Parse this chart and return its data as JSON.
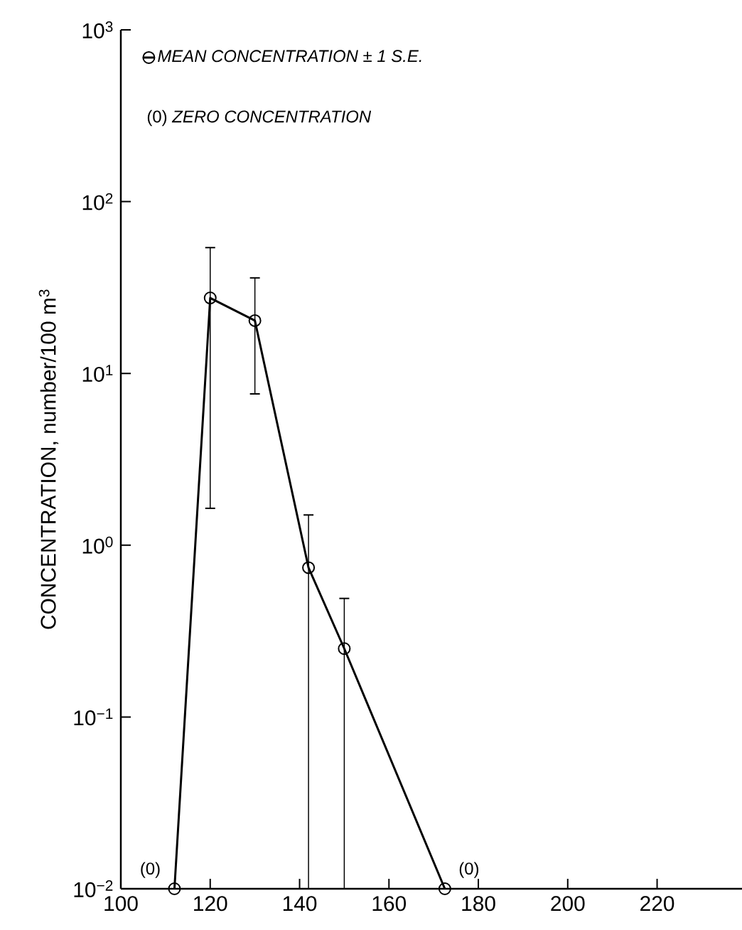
{
  "chart_data": {
    "type": "line",
    "ylabel": "CONCENTRATION, number/100 m$^{3}$",
    "x": [
      112,
      120,
      130,
      142,
      150,
      172.5
    ],
    "series": [
      {
        "name": "*MEAN CONCENTRATION* ± *1 S.E.*",
        "color": "#000000",
        "values": [
          0.01,
          27.5,
          20.3,
          0.74,
          0.25,
          0.01
        ],
        "errors": [
          null,
          [
            1.64,
            54
          ],
          [
            7.6,
            36
          ],
          [
            0.01,
            1.5
          ],
          [
            0.01,
            0.49
          ],
          null
        ]
      }
    ],
    "log": "y",
    "marker": "circle",
    "line_style": "solid",
    "legend": "top left",
    "grid": false,
    "xlim": [
      100,
      239
    ],
    "xticks": [
      100,
      120,
      140,
      160,
      180,
      200,
      220
    ],
    "ylim": [
      0.01,
      1000
    ],
    "yticks": [
      {
        "value": 0.01,
        "label": "10$^{−2}$"
      },
      {
        "value": 0.1,
        "label": "10$^{−1}$"
      },
      {
        "value": 1,
        "label": "10$^{0}$"
      },
      {
        "value": 10,
        "label": "10$^{1}$"
      },
      {
        "value": 100,
        "label": "10$^{2}$"
      },
      {
        "value": 1000,
        "label": "10$^{3}$"
      }
    ],
    "annotations": [
      "(0) *ZERO CONCENTRATION*",
      {
        "text": "(0)",
        "x": 112,
        "y": 0.01
      },
      {
        "text": "(0)",
        "x": 172.5,
        "y": 0.01
      }
    ]
  }
}
